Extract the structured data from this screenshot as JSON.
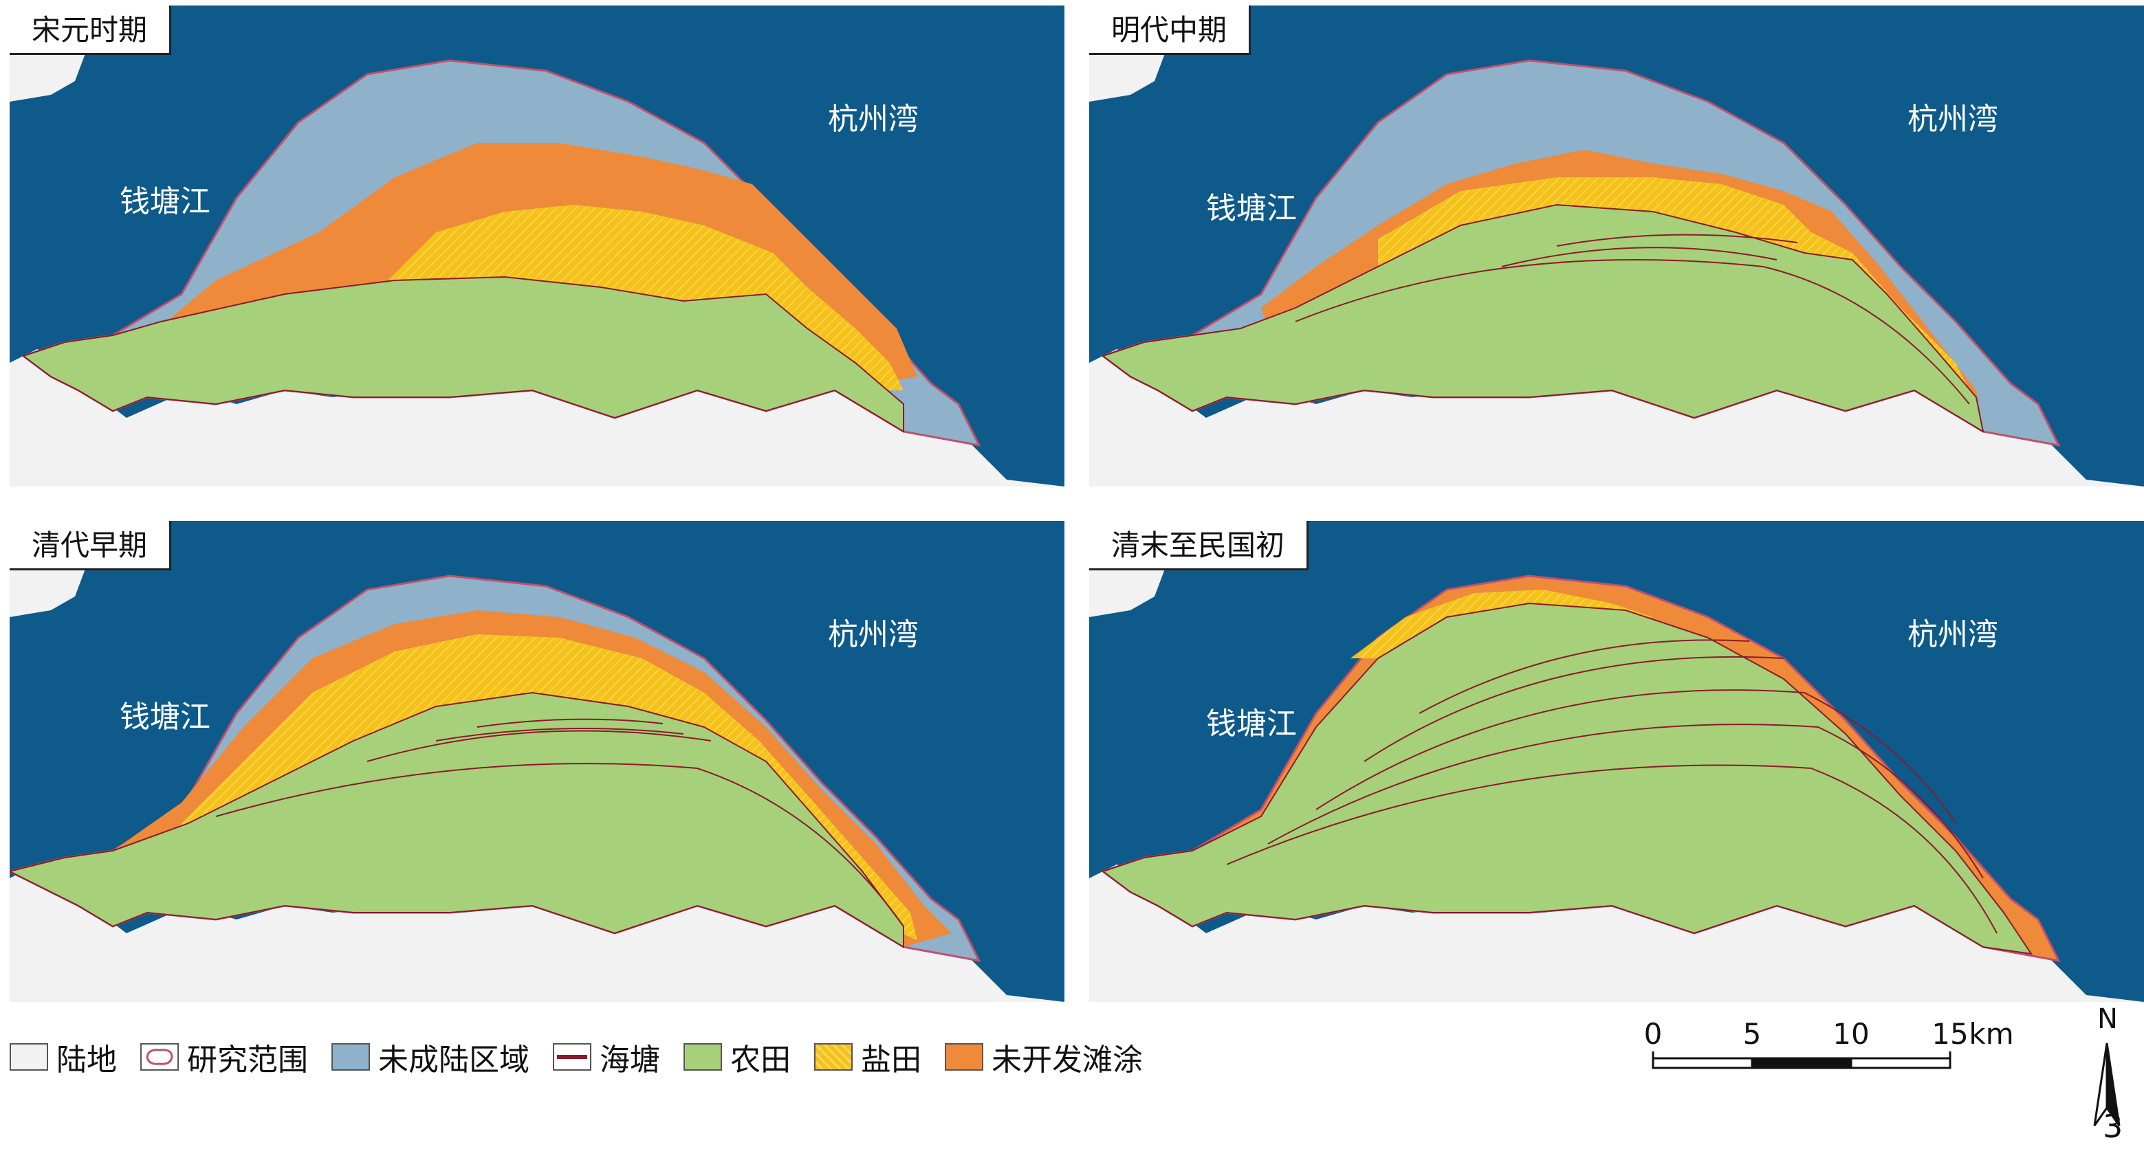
{
  "panels": [
    {
      "title": "宋元时期",
      "labels": {
        "river": "钱塘江",
        "bay": "杭州湾"
      }
    },
    {
      "title": "明代中期",
      "labels": {
        "river": "钱塘江",
        "bay": "杭州湾"
      }
    },
    {
      "title": "清代早期",
      "labels": {
        "river": "钱塘江",
        "bay": "杭州湾"
      }
    },
    {
      "title": "清末至民国初",
      "labels": {
        "river": "钱塘江",
        "bay": "杭州湾"
      }
    }
  ],
  "legend": [
    {
      "label": "陆地",
      "color": "#f2f2f2"
    },
    {
      "label": "研究范围",
      "color": "#c0506e"
    },
    {
      "label": "未成陆区域",
      "color": "#8fb1c9"
    },
    {
      "label": "海塘",
      "color": "#8b1a2b"
    },
    {
      "label": "农田",
      "color": "#a6d07a"
    },
    {
      "label": "盐田",
      "color": "#f6c21a"
    },
    {
      "label": "未开发滩涂",
      "color": "#ee8a3a"
    }
  ],
  "scale": {
    "ticks": [
      "0",
      "5",
      "10",
      "15"
    ],
    "unit": "km"
  },
  "north": "N",
  "figure_number": "3",
  "colors": {
    "sea": "#0e5a8a",
    "land": "#f2f2f2",
    "boundary": "#c0506e"
  }
}
